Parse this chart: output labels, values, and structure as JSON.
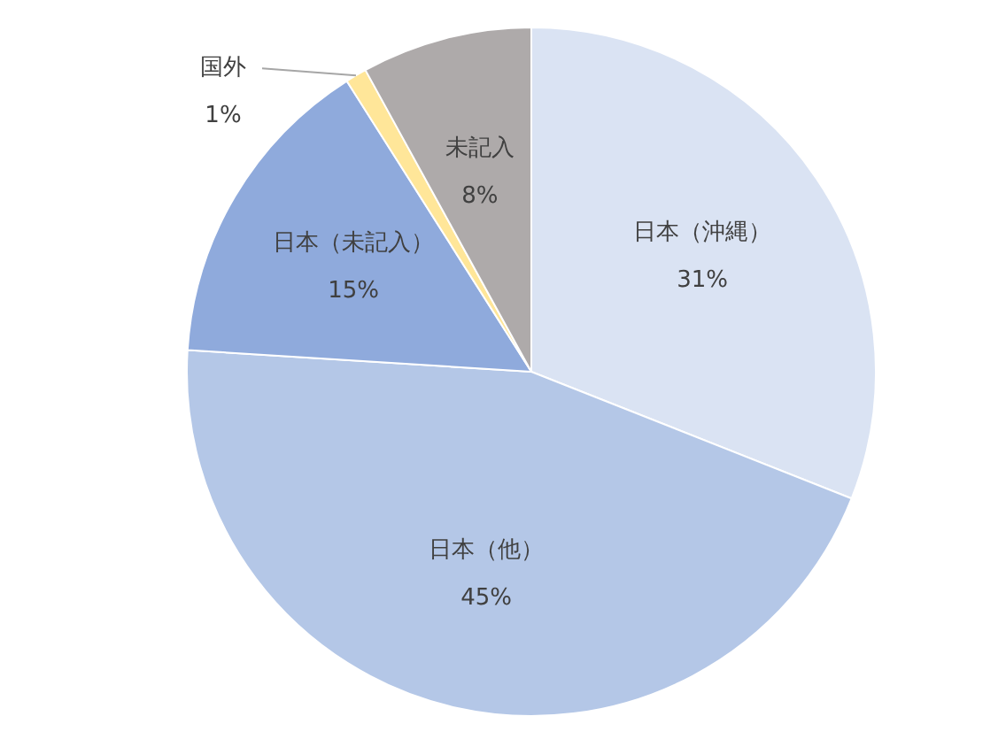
{
  "chart_data": {
    "type": "pie",
    "categories": [
      "日本（沖縄）",
      "日本（他）",
      "日本（未記入）",
      "国外",
      "未記入"
    ],
    "values": [
      31,
      45,
      15,
      1,
      8
    ],
    "value_labels": [
      "31%",
      "45%",
      "15%",
      "1%",
      "8%"
    ],
    "colors": [
      "#dae3f3",
      "#b4c7e7",
      "#8faadc",
      "#ffe699",
      "#aeaaaa"
    ],
    "legend": false
  }
}
